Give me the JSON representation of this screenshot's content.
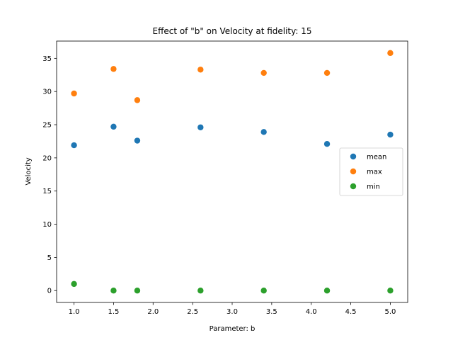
{
  "chart_data": {
    "type": "scatter",
    "title": "Effect of \"b\" on Velocity at fidelity: 15",
    "xlabel": "Parameter: b",
    "ylabel": "Velocity",
    "xlim": [
      0.78,
      5.22
    ],
    "ylim": [
      -1.79,
      37.6
    ],
    "xticks": [
      1.0,
      1.5,
      2.0,
      2.5,
      3.0,
      3.5,
      4.0,
      4.5,
      5.0
    ],
    "xtick_labels": [
      "1.0",
      "1.5",
      "2.0",
      "2.5",
      "3.0",
      "3.5",
      "4.0",
      "4.5",
      "5.0"
    ],
    "yticks": [
      0,
      5,
      10,
      15,
      20,
      25,
      30,
      35
    ],
    "ytick_labels": [
      "0",
      "5",
      "10",
      "15",
      "20",
      "25",
      "30",
      "35"
    ],
    "grid": false,
    "legend_position": "center-right",
    "x": [
      1.0,
      1.5,
      1.8,
      2.6,
      3.4,
      4.2,
      5.0
    ],
    "series": [
      {
        "name": "mean",
        "color": "#1f77b4",
        "values": [
          21.9,
          24.7,
          22.6,
          24.6,
          23.9,
          22.1,
          23.5
        ]
      },
      {
        "name": "max",
        "color": "#ff7f0e",
        "values": [
          29.7,
          33.4,
          28.7,
          33.3,
          32.8,
          32.8,
          35.8
        ]
      },
      {
        "name": "min",
        "color": "#2ca02c",
        "values": [
          1.0,
          0.0,
          0.0,
          0.0,
          0.0,
          0.0,
          0.0
        ]
      }
    ]
  }
}
